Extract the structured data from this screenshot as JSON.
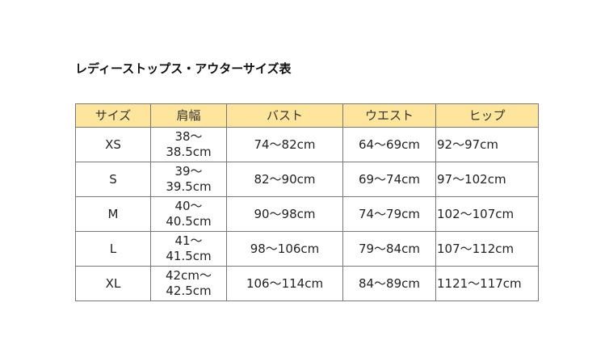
{
  "title": "レディーストップス・アウターサイズ表",
  "headers": [
    "サイズ",
    "肩幅",
    "バスト",
    "ウエスト",
    "ヒップ"
  ],
  "header_color": "#fde59b",
  "rows": [
    [
      "XS",
      "38〜\n38.5cm",
      "74〜82cm",
      "64〜69cm",
      "92〜97cm"
    ],
    [
      "S",
      "39〜\n39.5cm",
      "82〜90cm",
      "69〜74cm",
      "97〜102cm"
    ],
    [
      "M",
      "40〜\n40.5cm",
      "90〜98cm",
      "74〜79cm",
      "102〜107cm"
    ],
    [
      "L",
      "41〜\n41.5cm",
      "98〜106cm",
      "79〜84cm",
      "107〜112cm"
    ],
    [
      "XL",
      "42cm〜\n42.5cm",
      "106〜114cm",
      "84〜89cm",
      "1121〜117cm"
    ]
  ]
}
